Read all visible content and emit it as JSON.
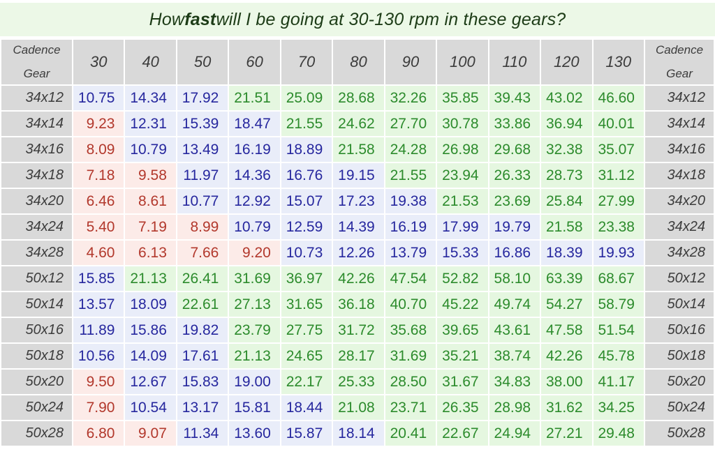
{
  "title": {
    "prefix": "How ",
    "bold_word": "fast",
    "suffix": " will I be going at 30-130 rpm in these gears?"
  },
  "corner_header": {
    "top": "Cadence",
    "bottom": "Gear"
  },
  "colors": {
    "title_background": "#ecf8e7",
    "title_text": "#1d3c17",
    "header_background": "#d9d9d9",
    "header_text": "#3c3c3c",
    "slow_background": "#fcebe8",
    "slow_text": "#b2382c",
    "medium_background": "#e9edf9",
    "medium_text": "#26279e",
    "fast_background": "#e5f7e0",
    "fast_text": "#2c8b2c",
    "grid_border": "#ffffff"
  },
  "chart_data": {
    "type": "table",
    "title": "How fast will I be going at 30-130 rpm in these gears?",
    "xlabel": "Cadence (rpm)",
    "ylabel": "Gear",
    "cadences": [
      "30",
      "40",
      "50",
      "60",
      "70",
      "80",
      "90",
      "100",
      "110",
      "120",
      "130"
    ],
    "color_bands": {
      "red_if_below": 10,
      "blue_if_below": 20,
      "green_if_at_or_above": 20
    },
    "rows": [
      {
        "gear": "34x12",
        "speeds": [
          "10.75",
          "14.34",
          "17.92",
          "21.51",
          "25.09",
          "28.68",
          "32.26",
          "35.85",
          "39.43",
          "43.02",
          "46.60"
        ]
      },
      {
        "gear": "34x14",
        "speeds": [
          "9.23",
          "12.31",
          "15.39",
          "18.47",
          "21.55",
          "24.62",
          "27.70",
          "30.78",
          "33.86",
          "36.94",
          "40.01"
        ]
      },
      {
        "gear": "34x16",
        "speeds": [
          "8.09",
          "10.79",
          "13.49",
          "16.19",
          "18.89",
          "21.58",
          "24.28",
          "26.98",
          "29.68",
          "32.38",
          "35.07"
        ]
      },
      {
        "gear": "34x18",
        "speeds": [
          "7.18",
          "9.58",
          "11.97",
          "14.36",
          "16.76",
          "19.15",
          "21.55",
          "23.94",
          "26.33",
          "28.73",
          "31.12"
        ]
      },
      {
        "gear": "34x20",
        "speeds": [
          "6.46",
          "8.61",
          "10.77",
          "12.92",
          "15.07",
          "17.23",
          "19.38",
          "21.53",
          "23.69",
          "25.84",
          "27.99"
        ]
      },
      {
        "gear": "34x24",
        "speeds": [
          "5.40",
          "7.19",
          "8.99",
          "10.79",
          "12.59",
          "14.39",
          "16.19",
          "17.99",
          "19.79",
          "21.58",
          "23.38"
        ]
      },
      {
        "gear": "34x28",
        "speeds": [
          "4.60",
          "6.13",
          "7.66",
          "9.20",
          "10.73",
          "12.26",
          "13.79",
          "15.33",
          "16.86",
          "18.39",
          "19.93"
        ]
      },
      {
        "gear": "50x12",
        "speeds": [
          "15.85",
          "21.13",
          "26.41",
          "31.69",
          "36.97",
          "42.26",
          "47.54",
          "52.82",
          "58.10",
          "63.39",
          "68.67"
        ]
      },
      {
        "gear": "50x14",
        "speeds": [
          "13.57",
          "18.09",
          "22.61",
          "27.13",
          "31.65",
          "36.18",
          "40.70",
          "45.22",
          "49.74",
          "54.27",
          "58.79"
        ]
      },
      {
        "gear": "50x16",
        "speeds": [
          "11.89",
          "15.86",
          "19.82",
          "23.79",
          "27.75",
          "31.72",
          "35.68",
          "39.65",
          "43.61",
          "47.58",
          "51.54"
        ]
      },
      {
        "gear": "50x18",
        "speeds": [
          "10.56",
          "14.09",
          "17.61",
          "21.13",
          "24.65",
          "28.17",
          "31.69",
          "35.21",
          "38.74",
          "42.26",
          "45.78"
        ]
      },
      {
        "gear": "50x20",
        "speeds": [
          "9.50",
          "12.67",
          "15.83",
          "19.00",
          "22.17",
          "25.33",
          "28.50",
          "31.67",
          "34.83",
          "38.00",
          "41.17"
        ]
      },
      {
        "gear": "50x24",
        "speeds": [
          "7.90",
          "10.54",
          "13.17",
          "15.81",
          "18.44",
          "21.08",
          "23.71",
          "26.35",
          "28.98",
          "31.62",
          "34.25"
        ]
      },
      {
        "gear": "50x28",
        "speeds": [
          "6.80",
          "9.07",
          "11.34",
          "13.60",
          "15.87",
          "18.14",
          "20.41",
          "22.67",
          "24.94",
          "27.21",
          "29.48"
        ]
      }
    ]
  }
}
